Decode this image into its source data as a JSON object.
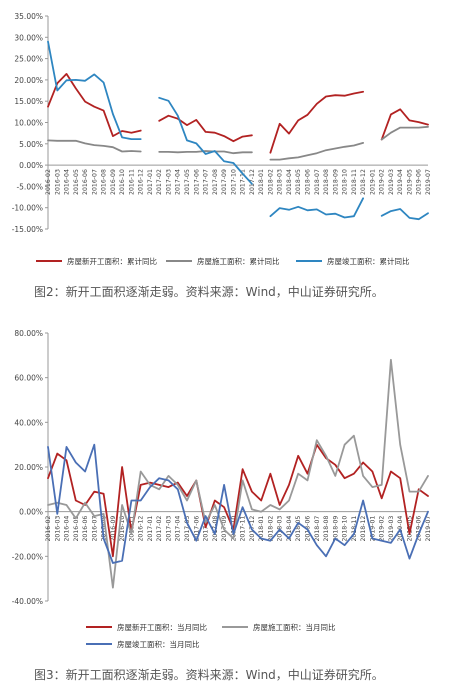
{
  "captions": {
    "fig2": "图2：新开工面积逐渐走弱。资料来源：Wind，中山证券研究所。",
    "fig3": "图3：新开工面积逐渐走弱。资料来源：Wind，中山证券研究所。"
  },
  "chart_data": [
    {
      "type": "line",
      "title": "",
      "ylim": [
        -15,
        35
      ],
      "y_ticks": [
        -15,
        -10,
        -5,
        0,
        5,
        10,
        15,
        20,
        25,
        30,
        35
      ],
      "y_tick_format": "percent",
      "grid": false,
      "legend": "bottom",
      "categories": [
        "2016-02",
        "2016-03",
        "2016-04",
        "2016-05",
        "2016-06",
        "2016-07",
        "2016-08",
        "2016-09",
        "2016-10",
        "2016-11",
        "2016-12",
        "2017-01",
        "2017-02",
        "2017-03",
        "2017-04",
        "2017-05",
        "2017-06",
        "2017-07",
        "2017-08",
        "2017-09",
        "2017-10",
        "2017-11",
        "2017-12",
        "2018-01",
        "2018-02",
        "2018-03",
        "2018-04",
        "2018-05",
        "2018-06",
        "2018-07",
        "2018-08",
        "2018-09",
        "2018-10",
        "2018-11",
        "2018-12",
        "2019-01",
        "2019-02",
        "2019-03",
        "2019-04",
        "2019-05",
        "2019-06",
        "2019-07"
      ],
      "series": [
        {
          "name": "房屋新开工面积：累计同比",
          "color": "#b22222",
          "values": [
            13.7,
            19.2,
            21.4,
            18.0,
            14.9,
            13.7,
            12.8,
            6.8,
            8.0,
            7.6,
            8.1,
            null,
            10.4,
            11.6,
            10.9,
            9.4,
            10.6,
            7.8,
            7.6,
            6.8,
            5.6,
            6.7,
            7.0,
            null,
            2.9,
            9.7,
            7.4,
            10.5,
            11.8,
            14.4,
            16.1,
            16.4,
            16.3,
            16.8,
            17.2,
            null,
            6.0,
            11.9,
            13.1,
            10.5,
            10.1,
            9.5
          ]
        },
        {
          "name": "房屋施工面积：累计同比",
          "color": "#888888",
          "values": [
            5.8,
            5.7,
            5.7,
            5.7,
            5.1,
            4.7,
            4.5,
            4.2,
            3.2,
            3.3,
            3.2,
            null,
            3.1,
            3.1,
            3.0,
            3.1,
            3.1,
            3.3,
            3.2,
            3.2,
            2.8,
            3.0,
            3.0,
            null,
            1.3,
            1.3,
            1.6,
            1.8,
            2.3,
            2.8,
            3.5,
            3.9,
            4.3,
            4.6,
            5.2,
            null,
            6.0,
            7.6,
            8.8,
            8.8,
            8.8,
            9.0
          ]
        },
        {
          "name": "房屋竣工面积：累计同比",
          "color": "#2e86c1",
          "values": [
            29.0,
            17.5,
            19.9,
            20.0,
            19.8,
            21.3,
            19.4,
            12.0,
            6.5,
            6.1,
            6.1,
            null,
            15.8,
            15.1,
            11.6,
            5.8,
            5.1,
            2.6,
            3.3,
            0.9,
            0.5,
            -2.0,
            -4.4,
            null,
            -12.0,
            -10.1,
            -10.5,
            -9.8,
            -10.6,
            -10.4,
            -11.6,
            -11.4,
            -12.3,
            -12.0,
            -7.8,
            null,
            -11.9,
            -10.8,
            -10.3,
            -12.4,
            -12.7,
            -11.3
          ]
        }
      ]
    },
    {
      "type": "line",
      "title": "",
      "ylim": [
        -40,
        80
      ],
      "y_ticks": [
        -40,
        -20,
        0,
        20,
        40,
        60,
        80
      ],
      "y_tick_format": "percent",
      "grid": false,
      "legend": "bottom",
      "categories": [
        "2016-02",
        "2016-03",
        "2016-04",
        "2016-05",
        "2016-06",
        "2016-07",
        "2016-08",
        "2016-09",
        "2016-10",
        "2016-11",
        "2016-12",
        "2017-01",
        "2017-02",
        "2017-03",
        "2017-04",
        "2017-05",
        "2017-06",
        "2017-07",
        "2017-08",
        "2017-09",
        "2017-10",
        "2017-11",
        "2017-12",
        "2018-01",
        "2018-02",
        "2018-03",
        "2018-04",
        "2018-05",
        "2018-06",
        "2018-07",
        "2018-08",
        "2018-09",
        "2018-10",
        "2018-11",
        "2018-12",
        "2019-01",
        "2019-02",
        "2019-03",
        "2019-04",
        "2019-05",
        "2019-06",
        "2019-07"
      ],
      "series": [
        {
          "name": "房屋新开工面积：当月同比",
          "color": "#b22222",
          "values": [
            15,
            26,
            23,
            5,
            3,
            9,
            8,
            -20,
            20,
            -9,
            12,
            13,
            12,
            11,
            13,
            7,
            14,
            -7,
            5,
            2,
            -8,
            19,
            9,
            5,
            17,
            3,
            12,
            25,
            17,
            30,
            24,
            21,
            15,
            17,
            22,
            18,
            6,
            18,
            15,
            -10,
            10,
            7
          ]
        },
        {
          "name": "房屋施工面积：当月同比",
          "color": "#999999",
          "values": [
            3,
            4,
            3,
            -3,
            4,
            -2,
            -1,
            -34,
            3,
            -10,
            18,
            12,
            10,
            16,
            12,
            5,
            14,
            -5,
            3,
            -8,
            -12,
            14,
            1,
            0,
            3,
            1,
            5,
            17,
            14,
            32,
            25,
            16,
            30,
            34,
            16,
            11,
            12,
            68,
            30,
            9,
            9,
            16
          ]
        },
        {
          "name": "房屋竣工面积：当月同比",
          "color": "#4a6fb5",
          "values": [
            29,
            -1,
            29,
            22,
            18,
            30,
            -12,
            -23,
            -22,
            5,
            5,
            11,
            15,
            14,
            10,
            -5,
            -13,
            -2,
            -10,
            12,
            -10,
            2,
            -8,
            -12,
            -13,
            -8,
            -12,
            -5,
            -8,
            -15,
            -20,
            -12,
            -15,
            -10,
            5,
            -12,
            -13,
            -14,
            -8,
            -21,
            -10,
            0
          ]
        }
      ]
    }
  ]
}
